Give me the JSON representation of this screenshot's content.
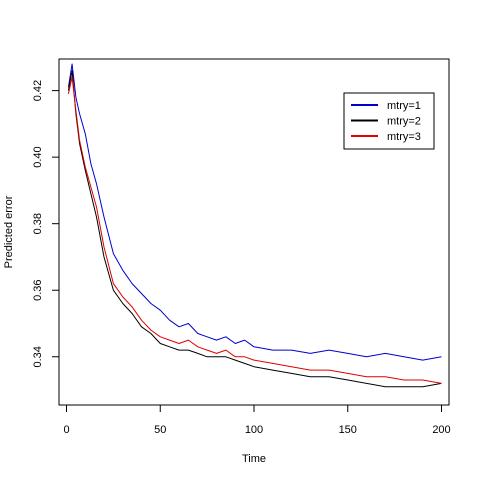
{
  "chart_data": {
    "type": "line",
    "title": "",
    "xlabel": "Time",
    "ylabel": "Predicted error",
    "xlim": [
      -4,
      204
    ],
    "ylim": [
      0.3255,
      0.4295
    ],
    "xticks": [
      0,
      50,
      100,
      150,
      200
    ],
    "xtick_labels": [
      "0",
      "50",
      "100",
      "150",
      "200"
    ],
    "yticks": [
      0.34,
      0.36,
      0.38,
      0.4,
      0.42
    ],
    "ytick_labels": [
      "0.34",
      "0.36",
      "0.38",
      "0.40",
      "0.42"
    ],
    "grid": false,
    "legend_position": "top-right",
    "series": [
      {
        "name": "mtry=1",
        "color": "#0000CD",
        "x": [
          1,
          3,
          5,
          7,
          10,
          13,
          16,
          20,
          25,
          30,
          35,
          40,
          45,
          50,
          55,
          60,
          65,
          70,
          75,
          80,
          85,
          90,
          95,
          100,
          110,
          120,
          130,
          140,
          150,
          160,
          170,
          180,
          190,
          200
        ],
        "y": [
          0.421,
          0.428,
          0.418,
          0.413,
          0.407,
          0.398,
          0.392,
          0.382,
          0.371,
          0.366,
          0.362,
          0.359,
          0.356,
          0.354,
          0.351,
          0.349,
          0.35,
          0.347,
          0.346,
          0.345,
          0.346,
          0.344,
          0.345,
          0.343,
          0.342,
          0.342,
          0.341,
          0.342,
          0.341,
          0.34,
          0.341,
          0.34,
          0.339,
          0.34
        ]
      },
      {
        "name": "mtry=2",
        "color": "#000000",
        "x": [
          1,
          3,
          5,
          7,
          10,
          13,
          16,
          20,
          25,
          30,
          35,
          40,
          45,
          50,
          55,
          60,
          65,
          70,
          75,
          80,
          85,
          90,
          95,
          100,
          110,
          120,
          130,
          140,
          150,
          160,
          170,
          180,
          190,
          200
        ],
        "y": [
          0.42,
          0.426,
          0.413,
          0.404,
          0.396,
          0.389,
          0.382,
          0.37,
          0.36,
          0.356,
          0.353,
          0.349,
          0.347,
          0.344,
          0.343,
          0.342,
          0.342,
          0.341,
          0.34,
          0.34,
          0.34,
          0.339,
          0.338,
          0.337,
          0.336,
          0.335,
          0.334,
          0.334,
          0.333,
          0.332,
          0.331,
          0.331,
          0.331,
          0.332
        ]
      },
      {
        "name": "mtry=3",
        "color": "#E00000",
        "x": [
          1,
          3,
          5,
          7,
          10,
          13,
          16,
          20,
          25,
          30,
          35,
          40,
          45,
          50,
          55,
          60,
          65,
          70,
          75,
          80,
          85,
          90,
          95,
          100,
          110,
          120,
          130,
          140,
          150,
          160,
          170,
          180,
          190,
          200
        ],
        "y": [
          0.419,
          0.424,
          0.414,
          0.405,
          0.397,
          0.391,
          0.385,
          0.373,
          0.362,
          0.358,
          0.355,
          0.351,
          0.348,
          0.346,
          0.345,
          0.344,
          0.345,
          0.343,
          0.342,
          0.341,
          0.342,
          0.34,
          0.34,
          0.339,
          0.338,
          0.337,
          0.336,
          0.336,
          0.335,
          0.334,
          0.334,
          0.333,
          0.333,
          0.332
        ]
      }
    ]
  }
}
